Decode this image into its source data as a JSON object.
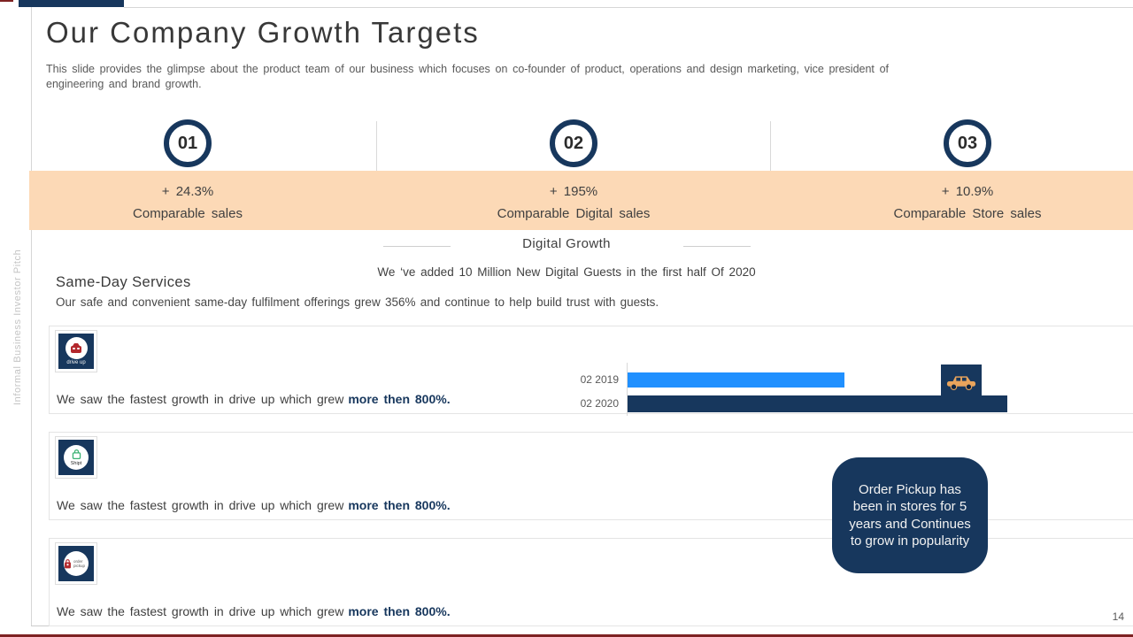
{
  "slide": {
    "title": "Our Company Growth Targets",
    "subtitle": "This slide provides the glimpse about the product team of our business which focuses on co-founder of product, operations and design marketing, vice president of engineering and brand growth.",
    "sidebar_text": "Informal Business Investor Pitch",
    "page_number": "14"
  },
  "growth_stats": {
    "items": [
      {
        "number": "01",
        "value": "+ 24.3%",
        "label": "Comparable sales"
      },
      {
        "number": "02",
        "value": "+ 195%",
        "label": "Comparable Digital sales"
      },
      {
        "number": "03",
        "value": "+ 10.9%",
        "label": "Comparable Store sales"
      }
    ],
    "band_color": "#fcd9b6"
  },
  "digital_growth": {
    "heading": "Digital Growth",
    "subtext": "We ‘ve added 10 Million New Digital Guests in the first half Of 2020"
  },
  "same_day_services": {
    "heading": "Same-Day Services",
    "description": "Our safe and convenient same-day fulfilment offerings grew 356% and continue to help build trust with guests."
  },
  "service_rows": [
    {
      "icon": "drive-up-icon",
      "icon_label": "drive up",
      "text": "We saw the fastest growth in drive up which grew",
      "highlight": "more then 800%."
    },
    {
      "icon": "shipt-icon",
      "icon_label": "Shipt",
      "text": "We saw the fastest growth in drive up which grew",
      "highlight": "more then 800%."
    },
    {
      "icon": "order-pickup-icon",
      "icon_label": "order pickup",
      "text": "We saw the fastest growth in drive up which grew",
      "highlight": "more then 800%."
    }
  ],
  "chart_data": {
    "type": "bar",
    "orientation": "horizontal",
    "categories": [
      "02 2019",
      "02 2020"
    ],
    "values": [
      57,
      100
    ],
    "series_colors": [
      "#2090ff",
      "#17375d"
    ],
    "value_labels_shown": false,
    "annotation_icon": "car-icon",
    "axis_labels_color": "#595959"
  },
  "callout": {
    "text": "Order Pickup has been in stores for 5 years and Continues to grow in popularity",
    "bg_color": "#17375d"
  },
  "colors": {
    "navy": "#17375d",
    "peach_band": "#fcd9b6",
    "bright_blue": "#2090ff",
    "accent_red": "#7e2222",
    "body_text": "#3f3f3f",
    "muted_text": "#595959"
  }
}
